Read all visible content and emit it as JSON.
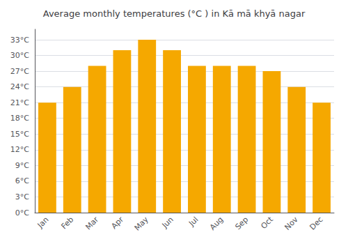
{
  "chart_data": {
    "type": "bar",
    "title": "Average monthly temperatures (°C ) in Kā mā khyā nagar",
    "categories": [
      "Jan",
      "Feb",
      "Mar",
      "Apr",
      "May",
      "Jun",
      "Jul",
      "Aug",
      "Sep",
      "Oct",
      "Nov",
      "Dec"
    ],
    "values": [
      21,
      24,
      28,
      31,
      33,
      31,
      28,
      28,
      28,
      27,
      24,
      21
    ],
    "color": "#F5A800",
    "ylim": [
      0,
      35
    ],
    "yticks": [
      {
        "value": 0,
        "label": "0°C"
      },
      {
        "value": 3,
        "label": "3°C"
      },
      {
        "value": 6,
        "label": "6°C"
      },
      {
        "value": 9,
        "label": "9°C"
      },
      {
        "value": 12,
        "label": "12°C"
      },
      {
        "value": 15,
        "label": "15°C"
      },
      {
        "value": 18,
        "label": "18°C"
      },
      {
        "value": 21,
        "label": "21°C"
      },
      {
        "value": 24,
        "label": "24°C"
      },
      {
        "value": 27,
        "label": "27°C"
      },
      {
        "value": 30,
        "label": "30°C"
      },
      {
        "value": 33,
        "label": "33°C"
      }
    ],
    "grid": true
  }
}
